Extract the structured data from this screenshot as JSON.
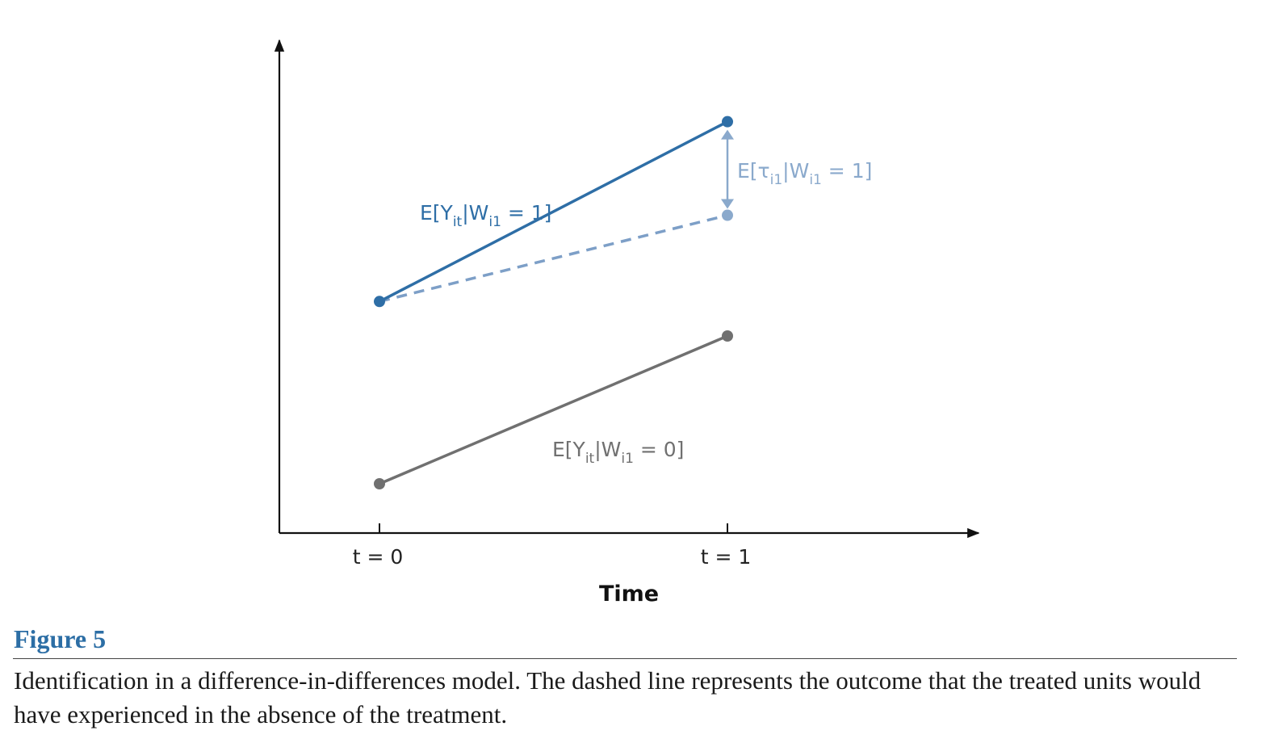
{
  "chart_data": {
    "type": "line",
    "x_tick_labels": [
      "t = 0",
      "t = 1"
    ],
    "xlabel": "Time",
    "ylabel": "",
    "series": [
      {
        "id": "treated",
        "name": "E[Y_it | W_i1 = 1]",
        "label_parts": [
          "E[Y",
          "it",
          "|W",
          "i1",
          " = 1]"
        ],
        "style": "solid",
        "color": "#2e6ea6",
        "points": [
          {
            "x": 0,
            "y": 0.47
          },
          {
            "x": 1,
            "y": 0.835
          }
        ]
      },
      {
        "id": "counterfactual",
        "style": "dashed",
        "color": "#7d9fc7",
        "points": [
          {
            "x": 0,
            "y": 0.47
          },
          {
            "x": 1,
            "y": 0.645
          }
        ]
      },
      {
        "id": "control",
        "name": "E[Y_it | W_i1 = 0]",
        "label_parts": [
          "E[Y",
          "it",
          "|W",
          "i1",
          " = 0]"
        ],
        "style": "solid",
        "color": "#707070",
        "points": [
          {
            "x": 0,
            "y": 0.1
          },
          {
            "x": 1,
            "y": 0.4
          }
        ]
      }
    ],
    "annotations": [
      {
        "id": "treatment-effect",
        "text": "E[τ_i1 | W_i1 = 1]",
        "label_parts": [
          "E[τ",
          "i1",
          "|W",
          "i1",
          " = 1]"
        ],
        "color": "#8aa9cc",
        "arrow_x": 1,
        "from_y": 0.645,
        "to_y": 0.835
      }
    ]
  },
  "figure": {
    "label": "Figure 5",
    "caption": "Identification in a difference-in-differences model. The dashed line represents the outcome that the treated units would have experienced in the absence of the treatment."
  }
}
